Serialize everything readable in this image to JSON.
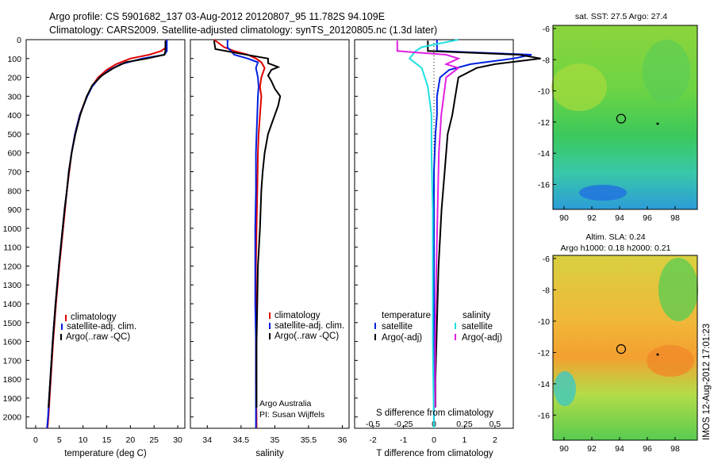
{
  "header": {
    "title_line1": "Argo profile: CS 5901682_137 03-Aug-2012 20120807_95 11.782S 94.109E",
    "title_line2": "Climatology: CARS2009. Satellite-adjusted climatology: synTS_20120805.nc (1.3d later)"
  },
  "colors": {
    "climatology": "#e00000",
    "satellite": "#0020e0",
    "argo": "#000000",
    "satellite_s": "#20e0e0",
    "argo_s": "#e020e0"
  },
  "depth_axis": {
    "ticks": [
      0,
      100,
      200,
      300,
      400,
      500,
      600,
      700,
      800,
      900,
      1000,
      1100,
      1200,
      1300,
      1400,
      1500,
      1600,
      1700,
      1800,
      1900,
      2000
    ],
    "range": [
      0,
      2060
    ]
  },
  "panels": {
    "temperature": {
      "xlabel": "temperature (deg C)",
      "xticks": [
        "0",
        "5",
        "10",
        "15",
        "20",
        "25",
        "30"
      ],
      "legend": [
        "climatology",
        "satellite-adj. clim.",
        "Argo(..raw -QC)"
      ]
    },
    "salinity": {
      "xlabel": "salinity",
      "xticks": [
        "34",
        "34.5",
        "35",
        "35.5",
        "36"
      ],
      "legend": [
        "climatology",
        "satellite-adj. clim.",
        "Argo(..raw -QC)"
      ],
      "credit_line1": "Argo Australia",
      "credit_line2": "PI: Susan Wijffels"
    },
    "difference": {
      "xlabel": "T difference from climatology",
      "top_label": "S difference from climatology",
      "xticks_t": [
        "-2",
        "-1",
        "0",
        "1",
        "2"
      ],
      "xticks_s": [
        "-0.5",
        "-0.25",
        "0",
        "0.25",
        "0.5"
      ],
      "legend_t_title": "temperature",
      "legend_t": [
        "satellite",
        "Argo(-adj)"
      ],
      "legend_s_title": "salinity",
      "legend_s": [
        "satellite",
        "Argo(-adj)"
      ]
    }
  },
  "maps": {
    "sst": {
      "title": "sat. SST: 27.5 Argo: 27.4",
      "yticks": [
        "-6",
        "-8",
        "-10",
        "-12",
        "-14",
        "-16"
      ],
      "xticks": [
        "90",
        "92",
        "94",
        "96",
        "98"
      ]
    },
    "sla": {
      "title_line1": "Altim. SLA: 0.24",
      "title_line2": "Argo h1000: 0.18 h2000: 0.21",
      "yticks": [
        "-6",
        "-8",
        "-10",
        "-12",
        "-14",
        "-16"
      ],
      "xticks": [
        "90",
        "92",
        "94",
        "96",
        "98"
      ]
    },
    "float_position": {
      "lon": 94.109,
      "lat": -11.782
    }
  },
  "footer": {
    "stamp": "IMOS 12-Aug-2012 17:01:23"
  },
  "chart_data": [
    {
      "type": "line",
      "title": "",
      "xlabel": "temperature (deg C)",
      "ylabel": "",
      "xlim": [
        -2,
        31.5
      ],
      "ylim": [
        2060,
        0
      ],
      "series": [
        {
          "name": "climatology",
          "depth": [
            0,
            40,
            60,
            80,
            100,
            130,
            160,
            200,
            250,
            300,
            400,
            500,
            600,
            700,
            800,
            900,
            1000,
            1200,
            1400,
            1600,
            1800,
            2000,
            2060
          ],
          "values": [
            27.6,
            27.6,
            26.5,
            24,
            20,
            17,
            15,
            13.2,
            11.8,
            10.8,
            9.3,
            8.3,
            7.6,
            7.1,
            6.6,
            6.2,
            5.8,
            5.0,
            4.3,
            3.7,
            3.2,
            2.7,
            2.5
          ]
        },
        {
          "name": "satellite-adj. clim.",
          "depth": [
            0,
            60,
            80,
            100,
            130,
            160,
            200,
            250,
            300,
            400,
            500,
            600,
            700,
            800,
            900,
            1000,
            1200,
            1400,
            1600,
            1800,
            2000,
            2060
          ],
          "values": [
            27.7,
            27.7,
            27.2,
            22.5,
            18,
            15.6,
            13.5,
            11.9,
            10.9,
            9.3,
            8.3,
            7.6,
            7.0,
            6.6,
            6.1,
            5.7,
            4.9,
            4.2,
            3.6,
            3.1,
            2.6,
            2.4
          ]
        },
        {
          "name": "Argo(..raw -QC)",
          "depth": [
            5,
            60,
            80,
            100,
            120,
            150,
            190,
            240,
            300,
            400,
            500,
            600,
            700,
            800,
            900,
            1000,
            1200,
            1400,
            1600,
            1800,
            1950
          ],
          "values": [
            27.4,
            27.4,
            27.2,
            23.5,
            19,
            16.5,
            14,
            12,
            10.8,
            9.4,
            8.4,
            7.6,
            7.0,
            6.6,
            6.1,
            5.7,
            4.9,
            4.2,
            3.6,
            3.1,
            2.7
          ]
        }
      ]
    },
    {
      "type": "line",
      "title": "",
      "xlabel": "salinity",
      "ylabel": "",
      "xlim": [
        33.75,
        36.1
      ],
      "ylim": [
        2060,
        0
      ],
      "series": [
        {
          "name": "climatology",
          "depth": [
            0,
            40,
            60,
            80,
            100,
            120,
            150,
            200,
            250,
            300,
            400,
            500,
            600,
            800,
            1000,
            1200,
            1400,
            1600,
            1800,
            2000,
            2060
          ],
          "values": [
            34.1,
            34.25,
            34.4,
            34.6,
            34.72,
            34.8,
            34.85,
            34.8,
            34.78,
            34.8,
            34.78,
            34.76,
            34.75,
            34.74,
            34.73,
            34.72,
            34.72,
            34.72,
            34.72,
            34.73,
            34.73
          ]
        },
        {
          "name": "satellite-adj. clim.",
          "depth": [
            0,
            40,
            60,
            80,
            100,
            120,
            150,
            200,
            250,
            300,
            400,
            500,
            600,
            800,
            1000,
            1200,
            1400,
            1600,
            1800,
            2000,
            2060
          ],
          "values": [
            34.3,
            34.3,
            34.35,
            34.4,
            34.6,
            34.75,
            34.72,
            34.75,
            34.76,
            34.75,
            34.74,
            34.73,
            34.72,
            34.72,
            34.71,
            34.71,
            34.71,
            34.72,
            34.72,
            34.72,
            34.72
          ]
        },
        {
          "name": "Argo(..raw -QC)",
          "depth": [
            5,
            50,
            75,
            100,
            125,
            145,
            160,
            190,
            220,
            260,
            300,
            350,
            400,
            450,
            500,
            600,
            700,
            800,
            1000,
            1200,
            1400,
            1600,
            1800,
            1950
          ],
          "values": [
            34.1,
            34.12,
            34.5,
            34.9,
            34.9,
            35.05,
            34.95,
            34.9,
            34.95,
            35.0,
            35.08,
            35.05,
            35.0,
            34.95,
            34.9,
            34.85,
            34.82,
            34.8,
            34.78,
            34.75,
            34.74,
            34.73,
            34.73,
            34.73
          ]
        }
      ]
    },
    {
      "type": "line",
      "title": "",
      "xlabel": "T difference from climatology",
      "ylabel": "",
      "xlim": [
        -2.6,
        2.6
      ],
      "ylim": [
        2060,
        0
      ],
      "series": [
        {
          "name": "temperature satellite",
          "depth": [
            0,
            60,
            80,
            100,
            130,
            160,
            200,
            300,
            400,
            500,
            700,
            900,
            1200,
            1500,
            1800,
            2060
          ],
          "values": [
            0.1,
            0.1,
            3.2,
            2.6,
            1.2,
            0.5,
            0.2,
            0.1,
            0.1,
            0.05,
            0.0,
            0.0,
            0.0,
            0.0,
            0.0,
            0.0
          ]
        },
        {
          "name": "temperature Argo(-adj)",
          "depth": [
            5,
            60,
            80,
            100,
            130,
            150,
            200,
            300,
            400,
            500,
            700,
            900,
            1200,
            1500,
            1800,
            1950
          ],
          "values": [
            -0.2,
            -0.2,
            2.8,
            3.5,
            2.0,
            1.4,
            0.8,
            0.7,
            0.6,
            0.45,
            0.35,
            0.25,
            0.15,
            0.1,
            0.05,
            0.05
          ]
        },
        {
          "name": "salinity satellite",
          "depth": [
            0,
            40,
            60,
            100,
            150,
            250,
            400,
            600,
            900,
            1200,
            1600,
            2060
          ],
          "values": [
            0.2,
            -0.1,
            -0.15,
            -0.2,
            -0.1,
            -0.05,
            -0.02,
            -0.02,
            -0.01,
            -0.01,
            -0.01,
            0.0
          ]
        },
        {
          "name": "salinity Argo(-adj)",
          "depth": [
            5,
            60,
            80,
            100,
            130,
            150,
            200,
            300,
            400,
            600,
            900,
            1200,
            1600,
            1950
          ],
          "values": [
            -0.3,
            -0.3,
            0.1,
            0.2,
            0.1,
            0.2,
            0.1,
            0.08,
            0.06,
            0.04,
            0.03,
            0.02,
            0.01,
            0.01
          ]
        }
      ]
    }
  ]
}
